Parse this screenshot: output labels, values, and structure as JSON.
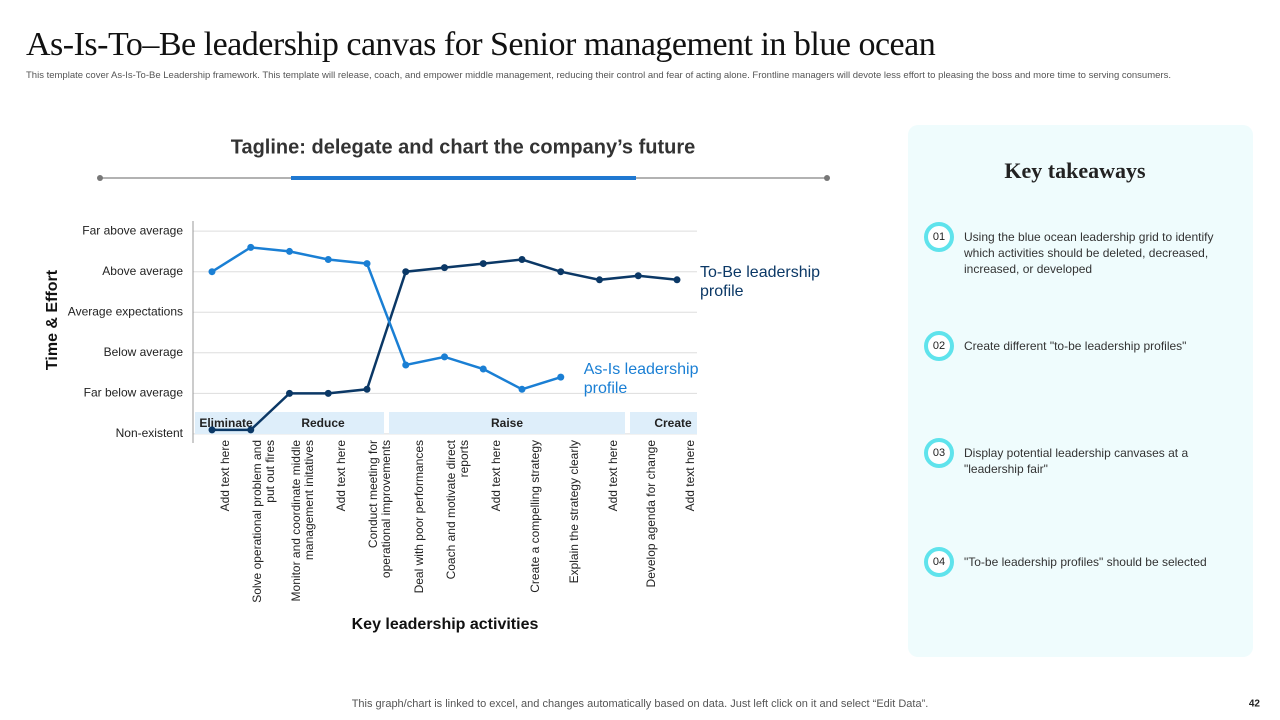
{
  "title": "As-Is-To–Be leadership canvas for Senior management in blue ocean",
  "subtitle": "This template cover As-Is-To-Be Leadership framework. This template will release, coach, and empower middle management, reducing their control and fear of acting alone. Frontline managers will devote less effort to pleasing the boss and more time to serving consumers.",
  "chart_data": {
    "type": "line",
    "title": "Tagline: delegate and chart the company’s future",
    "x_label": "Key leadership activities",
    "y_label": "Time & Effort",
    "categories": [
      "Add text here",
      "Solve operational problem and put out fires",
      "Monitor and coordinate middle management initatives",
      "Add text here",
      "Conduct meeting for operational improvements",
      "Deal with poor performances",
      "Coach and motivate direct reports",
      "Add text here",
      "Create a compelling strategy",
      "Explain the strategy clearly",
      "Add text here",
      "Develop agenda for change",
      "Add text here"
    ],
    "groups": [
      "Eliminate",
      "Reduce",
      "Raise",
      "Create"
    ],
    "series": [
      {
        "name": "To-Be leadership profile",
        "color": "#0b3866",
        "values": [
          0.1,
          0.1,
          1.0,
          1.0,
          1.1,
          4.0,
          4.1,
          4.2,
          4.3,
          4.0,
          3.8,
          3.9,
          3.8
        ]
      },
      {
        "name": "As-Is leadership profile",
        "color": "#1a7fd4",
        "values": [
          4.0,
          4.6,
          4.5,
          4.3,
          4.2,
          1.7,
          1.9,
          1.6,
          1.1,
          1.4,
          null,
          null,
          null
        ]
      }
    ],
    "ylim": [
      -0.15,
      5.25
    ],
    "yticks": [
      {
        "value": 0,
        "label": "Non-existent"
      },
      {
        "value": 1,
        "label": "Far below average"
      },
      {
        "value": 2,
        "label": "Below average"
      },
      {
        "value": 3,
        "label": "Average expectations"
      },
      {
        "value": 4,
        "label": "Above average"
      },
      {
        "value": 5,
        "label": "Far above average"
      }
    ],
    "grid": true
  },
  "takeaways": {
    "title": "Key takeaways",
    "items": [
      {
        "number": "01",
        "text": "Using the blue ocean leadership grid to identify which activities should be deleted, decreased, increased, or developed"
      },
      {
        "number": "02",
        "text": "Create different \"to-be leadership profiles\""
      },
      {
        "number": "03",
        "text": "Display potential leadership canvases at a \"leadership fair\""
      },
      {
        "number": "04",
        "text": "\"To-be leadership profiles\" should be selected"
      }
    ]
  },
  "footer": "This graph/chart is linked to excel, and changes automatically based on data. Just left click on it and select “Edit Data”.",
  "page_number": "42"
}
